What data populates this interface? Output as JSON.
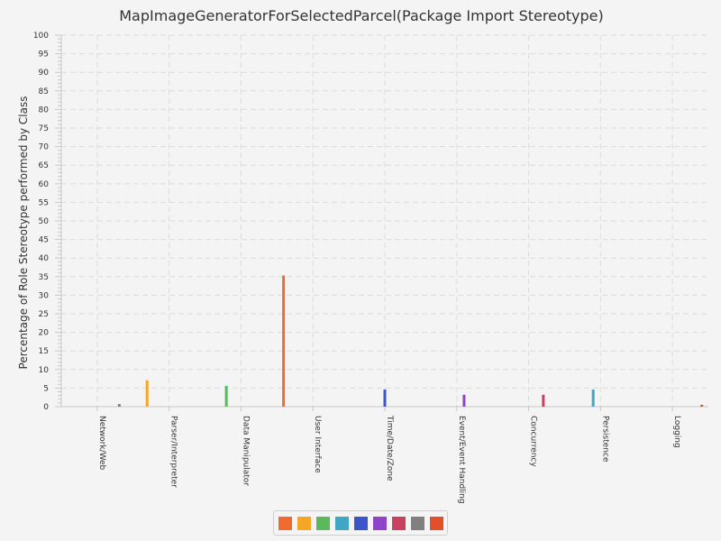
{
  "chart_data": {
    "type": "bar",
    "title": "MapImageGeneratorForSelectedParcel(Package Import Stereotype)",
    "ylabel": "Percentage of Role Stereotype performed by Class",
    "xlabel": "",
    "ylim": [
      0,
      100
    ],
    "ytick_step": 5,
    "grid": true,
    "legend_position": "bottom",
    "categories": [
      "Network/Web",
      "Parser/Interpreter",
      "Data Manipulator",
      "User Interface",
      "Time/Date/Zone",
      "Event/Event Handling",
      "Concurrency",
      "Persistence",
      "Logging"
    ],
    "series": [
      {
        "color": "#f16a2f",
        "values": [
          0,
          0,
          0,
          35.3,
          0,
          0,
          0,
          0,
          0
        ]
      },
      {
        "color": "#f5a623",
        "values": [
          0,
          7.1,
          0,
          0,
          0,
          0,
          0,
          0,
          0
        ]
      },
      {
        "color": "#5cb85c",
        "values": [
          0,
          0,
          5.6,
          0,
          0,
          0,
          0,
          0,
          0
        ]
      },
      {
        "color": "#3fa7c4",
        "values": [
          0,
          0,
          0,
          0,
          0,
          0,
          0,
          4.6,
          0
        ]
      },
      {
        "color": "#3a56c9",
        "values": [
          0,
          0,
          0,
          0,
          4.6,
          0,
          0,
          0,
          0
        ]
      },
      {
        "color": "#8e44c9",
        "values": [
          0,
          0,
          0,
          0,
          0,
          3.2,
          0,
          0,
          0
        ]
      },
      {
        "color": "#c9415f",
        "values": [
          0,
          0,
          0,
          0,
          0,
          0,
          3.2,
          0,
          0
        ]
      },
      {
        "color": "#808080",
        "values": [
          0.7,
          0,
          0,
          0,
          0,
          0,
          0,
          0,
          0
        ]
      },
      {
        "color": "#e2502a",
        "values": [
          0,
          0,
          0,
          0,
          0,
          0,
          0,
          0,
          0.5
        ]
      }
    ]
  }
}
